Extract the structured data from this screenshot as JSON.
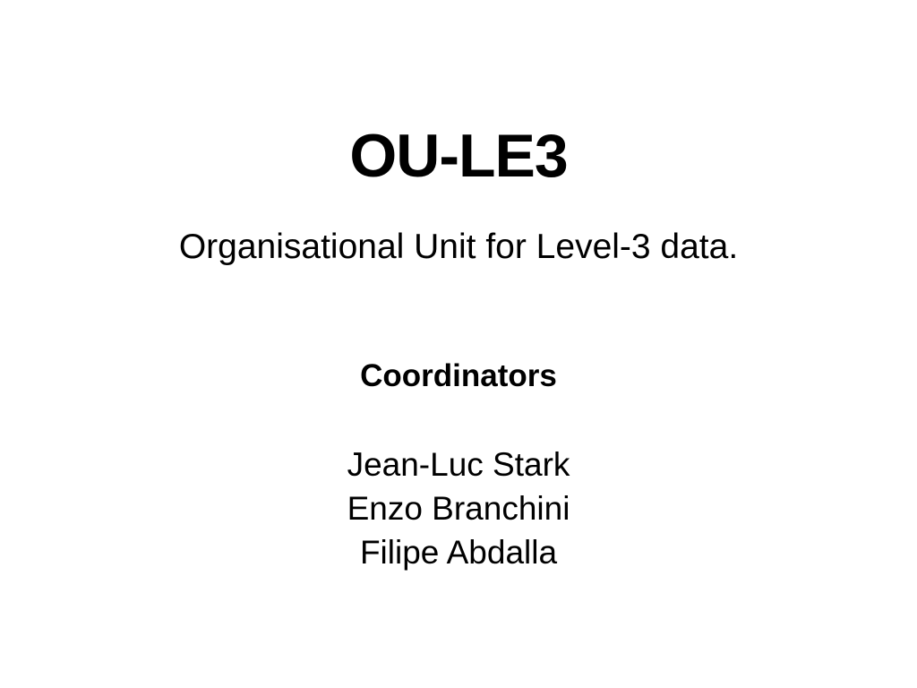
{
  "slide": {
    "title": "OU-LE3",
    "subtitle": "Organisational Unit for Level-3 data.",
    "section_heading": "Coordinators",
    "coordinators": [
      "Jean-Luc Stark",
      "Enzo Branchini",
      "Filipe Abdalla"
    ]
  }
}
